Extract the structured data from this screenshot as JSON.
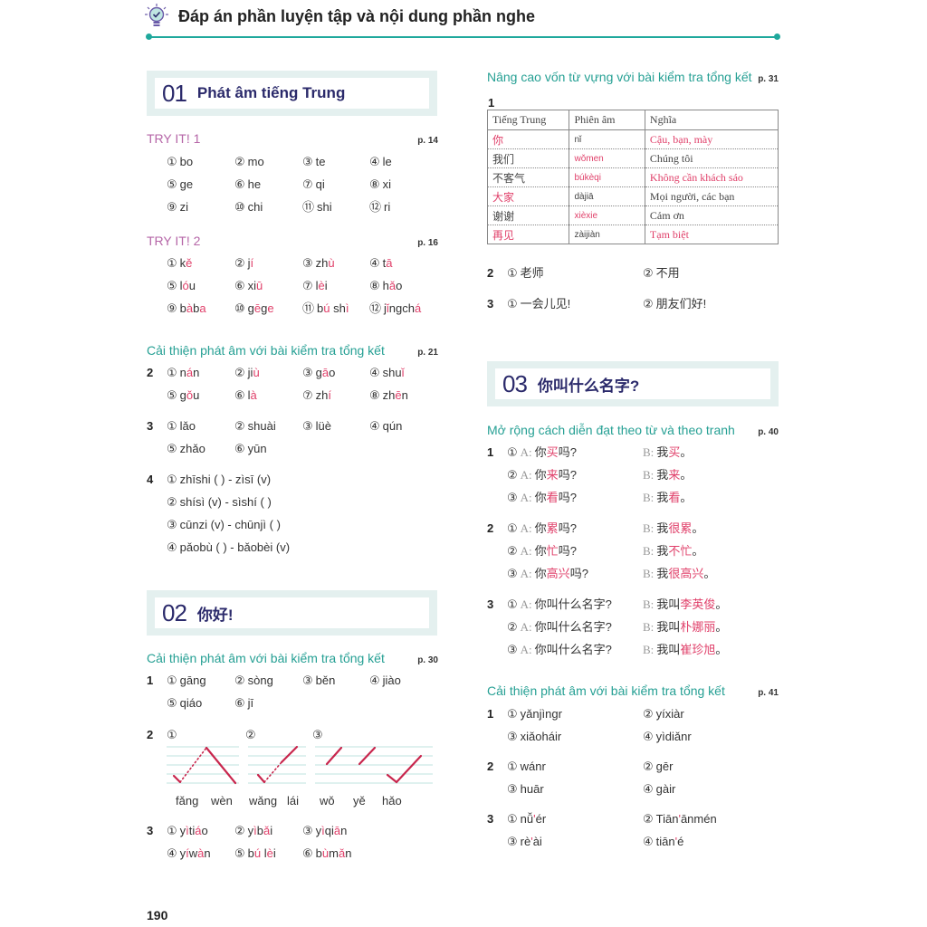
{
  "header": {
    "title": "Đáp án phần luyện tập và nội dung phần nghe",
    "icon": "lightbulb-check-icon"
  },
  "colors": {
    "accent": "#1fa89c",
    "highlight": "#e0406a",
    "section_title": "#2b2a6b",
    "try_heading": "#b565a7"
  },
  "left": {
    "sec01": {
      "num": "01",
      "name": "Phát âm tiếng Trung"
    },
    "try1": {
      "title": "TRY IT! 1",
      "page": "p. 14",
      "groups": [
        {
          "num": "",
          "rows": [
            [
              {
                "m": "①",
                "t": [
                  "bo"
                ]
              },
              {
                "m": "②",
                "t": [
                  "mo"
                ]
              },
              {
                "m": "③",
                "t": [
                  "te"
                ]
              },
              {
                "m": "④",
                "t": [
                  "le"
                ]
              }
            ],
            [
              {
                "m": "⑤",
                "t": [
                  "ge"
                ]
              },
              {
                "m": "⑥",
                "t": [
                  "he"
                ]
              },
              {
                "m": "⑦",
                "t": [
                  "qi"
                ]
              },
              {
                "m": "⑧",
                "t": [
                  "xi"
                ]
              }
            ],
            [
              {
                "m": "⑨",
                "t": [
                  "zi"
                ]
              },
              {
                "m": "⑩",
                "t": [
                  "chi"
                ]
              },
              {
                "m": "⑪",
                "t": [
                  "shi"
                ]
              },
              {
                "m": "⑫",
                "t": [
                  "ri"
                ]
              }
            ]
          ]
        }
      ]
    },
    "try2": {
      "title": "TRY IT! 2",
      "page": "p. 16",
      "groups": [
        {
          "num": "",
          "rows": [
            [
              {
                "m": "①",
                "t": [
                  "k",
                  "ě"
                ]
              },
              {
                "m": "②",
                "t": [
                  "j",
                  "í"
                ]
              },
              {
                "m": "③",
                "t": [
                  "zh",
                  "ù"
                ]
              },
              {
                "m": "④",
                "t": [
                  "t",
                  "ā"
                ]
              }
            ],
            [
              {
                "m": "⑤",
                "t": [
                  "l",
                  "ó",
                  "u"
                ]
              },
              {
                "m": "⑥",
                "t": [
                  "xi",
                  "ū"
                ]
              },
              {
                "m": "⑦",
                "t": [
                  "l",
                  "è",
                  "i"
                ]
              },
              {
                "m": "⑧",
                "t": [
                  "h",
                  "ǎ",
                  "o"
                ]
              }
            ],
            [
              {
                "m": "⑨",
                "t": [
                  "b",
                  "à",
                  "b",
                  "a"
                ]
              },
              {
                "m": "⑩",
                "t": [
                  "g",
                  "ē",
                  "g",
                  "e"
                ]
              },
              {
                "m": "⑪",
                "t": [
                  "b",
                  "ú",
                  " sh",
                  "ì"
                ]
              },
              {
                "m": "⑫",
                "t": [
                  "j",
                  "ǐ",
                  "ngch",
                  "á"
                ]
              }
            ]
          ]
        }
      ]
    },
    "p21": {
      "title": "Cải thiện phát âm với bài kiểm tra tổng kết",
      "page": "p. 21",
      "groups": [
        {
          "num": "2",
          "rows": [
            [
              {
                "m": "①",
                "t": [
                  "n",
                  "á",
                  "n"
                ]
              },
              {
                "m": "②",
                "t": [
                  "ji",
                  "ù"
                ]
              },
              {
                "m": "③",
                "t": [
                  "g",
                  "ā",
                  "o"
                ]
              },
              {
                "m": "④",
                "t": [
                  "shu",
                  "ǐ"
                ]
              }
            ],
            [
              {
                "m": "⑤",
                "t": [
                  "g",
                  "ǒ",
                  "u"
                ]
              },
              {
                "m": "⑥",
                "t": [
                  "l",
                  "à"
                ]
              },
              {
                "m": "⑦",
                "t": [
                  "zh",
                  "í"
                ]
              },
              {
                "m": "⑧",
                "t": [
                  "zh",
                  "ē",
                  "n"
                ]
              }
            ]
          ]
        },
        {
          "num": "3",
          "rows": [
            [
              {
                "m": "①",
                "t": [
                  "lǎo"
                ]
              },
              {
                "m": "②",
                "t": [
                  "shuài"
                ]
              },
              {
                "m": "③",
                "t": [
                  "lüè"
                ]
              },
              {
                "m": "④",
                "t": [
                  "qún"
                ]
              }
            ],
            [
              {
                "m": "⑤",
                "t": [
                  "zhǎo"
                ]
              },
              {
                "m": "⑥",
                "t": [
                  "yūn"
                ]
              }
            ]
          ]
        },
        {
          "num": "4",
          "wide": true,
          "rows": [
            [
              {
                "m": "①",
                "t": [
                  "zhīshi (  ) - zìsī (v)"
                ]
              }
            ],
            [
              {
                "m": "②",
                "t": [
                  "shísì (v) - sìshí (  )"
                ]
              }
            ],
            [
              {
                "m": "③",
                "t": [
                  "cūnzi (v) - chūnjì (  )"
                ]
              }
            ],
            [
              {
                "m": "④",
                "t": [
                  "pǎobù (  ) - bǎobèi (v)"
                ]
              }
            ]
          ]
        }
      ]
    },
    "sec02": {
      "num": "02",
      "name": "你好!"
    },
    "p30": {
      "title": "Cải thiện phát âm với bài kiểm tra tổng kết",
      "page": "p. 30",
      "g1": {
        "num": "1",
        "rows": [
          [
            {
              "m": "①",
              "t": [
                "gāng"
              ]
            },
            {
              "m": "②",
              "t": [
                "sòng"
              ]
            },
            {
              "m": "③",
              "t": [
                "běn"
              ]
            },
            {
              "m": "④",
              "t": [
                "jiào"
              ]
            }
          ],
          [
            {
              "m": "⑤",
              "t": [
                "qiáo"
              ]
            },
            {
              "m": "⑥",
              "t": [
                "jī"
              ]
            }
          ]
        ]
      },
      "g2": {
        "num": "2",
        "marks": [
          "①",
          "②",
          "③"
        ],
        "labels": [
          "fǎng",
          "wèn",
          "wǎng",
          "lái",
          "wǒ",
          "yě",
          "hǎo"
        ]
      },
      "g3": {
        "num": "3",
        "rows": [
          [
            {
              "m": "①",
              "t": [
                "y",
                "ì",
                "ti",
                "á",
                "o"
              ]
            },
            {
              "m": "②",
              "t": [
                "y",
                "ì",
                "b",
                "ǎ",
                "i"
              ]
            },
            {
              "m": "③",
              "t": [
                "y",
                "ì",
                "qi",
                "ā",
                "n"
              ]
            }
          ],
          [
            {
              "m": "④",
              "t": [
                "y",
                "í",
                "w",
                "à",
                "n"
              ]
            },
            {
              "m": "⑤",
              "t": [
                "b",
                "ú",
                " l",
                "è",
                "i"
              ]
            },
            {
              "m": "⑥",
              "t": [
                "b",
                "ù",
                "m",
                "ǎ",
                "n"
              ]
            }
          ]
        ]
      }
    }
  },
  "right": {
    "vocab": {
      "title": "Nâng cao vốn từ vựng với bài kiểm tra tổng kết",
      "page": "p. 31",
      "num": "1",
      "table": {
        "headers": [
          "Tiếng Trung",
          "Phiên âm",
          "Nghĩa"
        ],
        "rows": [
          [
            {
              "v": "你",
              "hl": true
            },
            {
              "v": "nǐ"
            },
            {
              "v": "Cậu, bạn, mày",
              "hl": true
            }
          ],
          [
            {
              "v": "我们"
            },
            {
              "v": "wǒmen",
              "hl": true
            },
            {
              "v": "Chúng tôi"
            }
          ],
          [
            {
              "v": "不客气"
            },
            {
              "v": "búkèqi",
              "hl": true
            },
            {
              "v": "Không cần khách sáo",
              "hl": true
            }
          ],
          [
            {
              "v": "大家",
              "hl": true
            },
            {
              "v": "dàjiā"
            },
            {
              "v": "Mọi người, các bạn"
            }
          ],
          [
            {
              "v": "谢谢"
            },
            {
              "v": "xièxie",
              "hl": true
            },
            {
              "v": "Cảm ơn"
            }
          ],
          [
            {
              "v": "再见",
              "hl": true
            },
            {
              "v": "zàijiàn"
            },
            {
              "v": "Tạm biệt",
              "hl": true
            }
          ]
        ]
      },
      "g2": {
        "num": "2",
        "rows": [
          [
            {
              "m": "①",
              "t": [
                "老师"
              ]
            },
            {
              "m": "②",
              "t": [
                "不用"
              ]
            }
          ]
        ]
      },
      "g3": {
        "num": "3",
        "rows": [
          [
            {
              "m": "①",
              "t": [
                "一会儿见!"
              ]
            },
            {
              "m": "②",
              "t": [
                "朋友们好!"
              ]
            }
          ]
        ]
      }
    },
    "sec03": {
      "num": "03",
      "name": "你叫什么名字?"
    },
    "p40": {
      "title": "Mở rộng cách diễn đạt theo từ và theo tranh",
      "page": "p. 40",
      "a_label": "A:",
      "b_label": "B:",
      "groups": [
        {
          "num": "1",
          "rows": [
            {
              "m": "①",
              "a": [
                "你",
                "买",
                "吗?"
              ],
              "b": [
                "我",
                "买",
                "。"
              ]
            },
            {
              "m": "②",
              "a": [
                "你",
                "来",
                "吗?"
              ],
              "b": [
                "我",
                "来",
                "。"
              ]
            },
            {
              "m": "③",
              "a": [
                "你",
                "看",
                "吗?"
              ],
              "b": [
                "我",
                "看",
                "。"
              ]
            }
          ]
        },
        {
          "num": "2",
          "rows": [
            {
              "m": "①",
              "a": [
                "你",
                "累",
                "吗?"
              ],
              "b": [
                "我",
                "很累",
                "。"
              ]
            },
            {
              "m": "②",
              "a": [
                "你",
                "忙",
                "吗?"
              ],
              "b": [
                "我",
                "不忙",
                "。"
              ]
            },
            {
              "m": "③",
              "a": [
                "你",
                "高兴",
                "吗?"
              ],
              "b": [
                "我",
                "很高兴",
                "。"
              ]
            }
          ]
        },
        {
          "num": "3",
          "rows": [
            {
              "m": "①",
              "a": [
                "你叫什么名字?"
              ],
              "b": [
                "我叫",
                "李英俊",
                "。"
              ]
            },
            {
              "m": "②",
              "a": [
                "你叫什么名字?"
              ],
              "b": [
                "我叫",
                "朴娜丽",
                "。"
              ]
            },
            {
              "m": "③",
              "a": [
                "你叫什么名字?"
              ],
              "b": [
                "我叫",
                "崔珍旭",
                "。"
              ]
            }
          ]
        }
      ]
    },
    "p41": {
      "title": "Cải thiện phát âm với bài kiểm tra tổng kết",
      "page": "p. 41",
      "groups": [
        {
          "num": "1",
          "rows": [
            [
              {
                "m": "①",
                "t": [
                  "yǎnjìngr"
                ]
              },
              {
                "m": "②",
                "t": [
                  "yíxiàr"
                ]
              }
            ],
            [
              {
                "m": "③",
                "t": [
                  "xiǎoháir"
                ]
              },
              {
                "m": "④",
                "t": [
                  "yìdiǎnr"
                ]
              }
            ]
          ]
        },
        {
          "num": "2",
          "rows": [
            [
              {
                "m": "①",
                "t": [
                  "wánr"
                ]
              },
              {
                "m": "②",
                "t": [
                  "gēr"
                ]
              }
            ],
            [
              {
                "m": "③",
                "t": [
                  "huār"
                ]
              },
              {
                "m": "④",
                "t": [
                  "gàir"
                ]
              }
            ]
          ]
        },
        {
          "num": "3",
          "rows": [
            [
              {
                "m": "①",
                "t": [
                  "nǚ",
                  "'",
                  "ér"
                ]
              },
              {
                "m": "②",
                "t": [
                  "Tiān",
                  "'",
                  "ānmén"
                ]
              }
            ],
            [
              {
                "m": "③",
                "t": [
                  "rè",
                  "'",
                  "ài"
                ]
              },
              {
                "m": "④",
                "t": [
                  "tiān",
                  "'",
                  "é"
                ]
              }
            ]
          ]
        }
      ]
    }
  },
  "page_number": "190"
}
